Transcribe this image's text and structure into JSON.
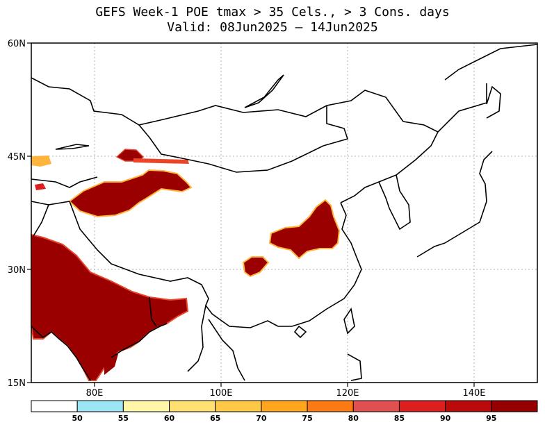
{
  "title": "GEFS Week-1 POE tmax > 35 Cels., > 3 Cons. days",
  "subtitle": "Valid: 08Jun2025 — 14Jun2025",
  "axes": {
    "lat_labels": [
      "60N",
      "45N",
      "30N",
      "15N"
    ],
    "lon_labels": [
      "80E",
      "100E",
      "120E",
      "140E"
    ]
  },
  "colorbar": {
    "colors": [
      "#ffffff",
      "#9be5f5",
      "#fff6a8",
      "#ffe070",
      "#ffc846",
      "#ffa51e",
      "#fb7a14",
      "#e05050",
      "#dc1e1e",
      "#bb0a0a",
      "#960000"
    ],
    "labels": [
      "50",
      "55",
      "60",
      "65",
      "70",
      "75",
      "80",
      "85",
      "90",
      "95"
    ]
  },
  "map_colors": {
    "land_line": "#000000",
    "grid": "#b0b0b0",
    "fill_high": "#9a0000",
    "fill_mid": "#e8452a",
    "fill_low": "#ffb43c"
  }
}
